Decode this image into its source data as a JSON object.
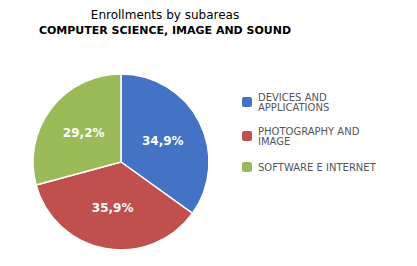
{
  "chart_data": {
    "type": "pie",
    "title": "Enrollments by subareas",
    "subtitle": "COMPUTER SCIENCE, IMAGE AND SOUND",
    "categories": [
      "DEVICES AND\nAPPLICATIONS",
      "PHOTOGRAPHY AND\nIMAGE",
      "SOFTWARE E INTERNET"
    ],
    "values": [
      34.9,
      35.9,
      29.2
    ],
    "value_labels": [
      "34,9%",
      "35,9%",
      "29,2%"
    ],
    "colors": [
      "#4472C4",
      "#C0504D",
      "#9BBB59"
    ],
    "data_labels": true,
    "legend": "right"
  }
}
